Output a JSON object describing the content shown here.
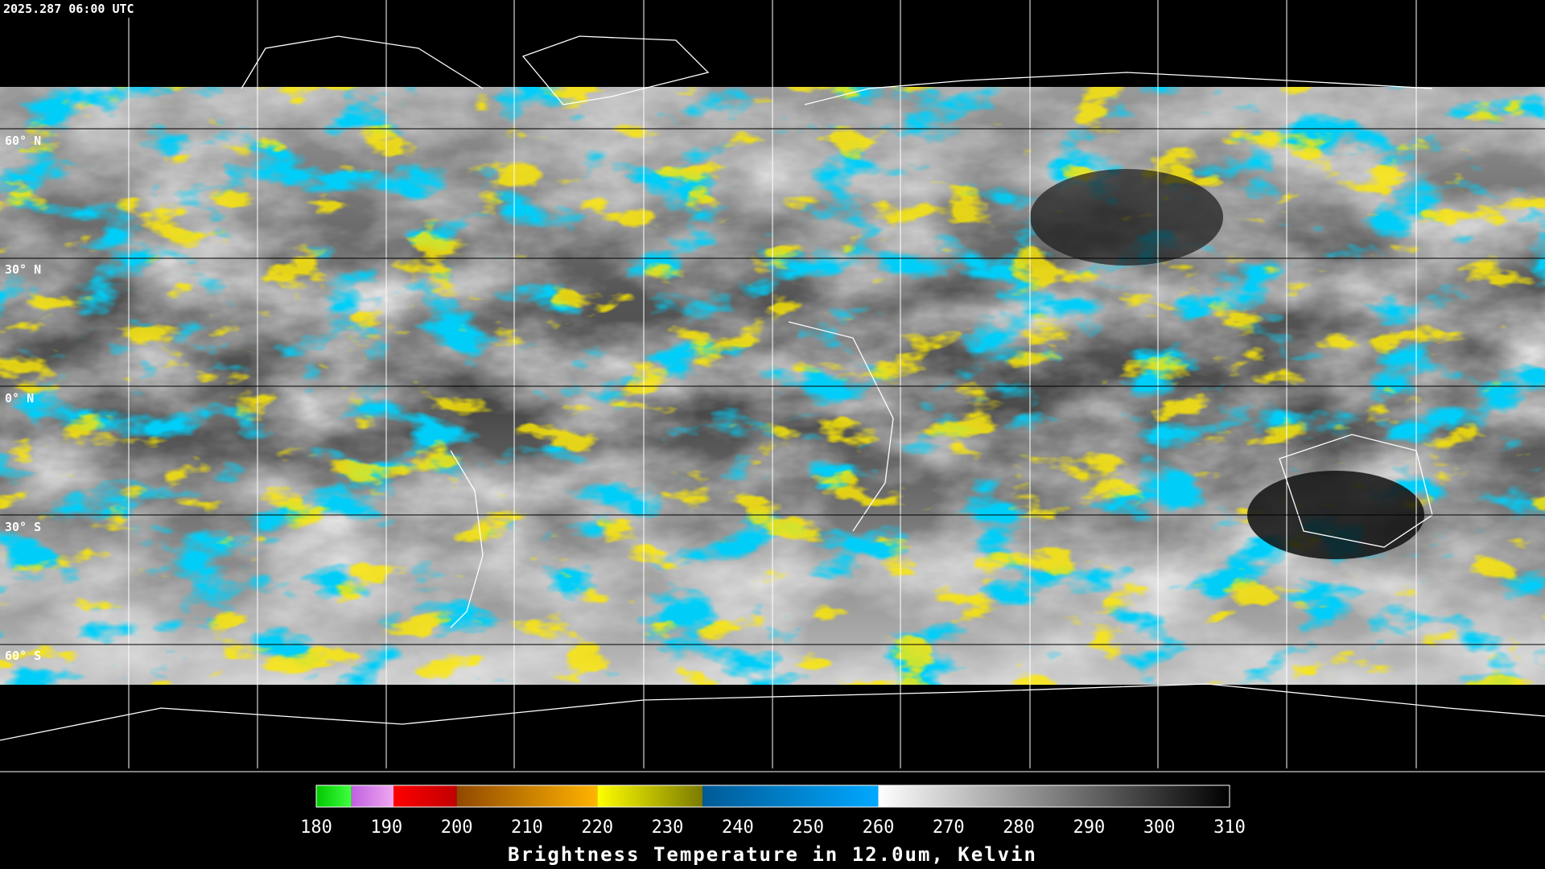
{
  "timestamp": "2025.287 06:00 UTC",
  "lat_labels": [
    {
      "label": "60° N"
    },
    {
      "label": "30° N"
    },
    {
      "label": "0° N"
    },
    {
      "label": "30° S"
    },
    {
      "label": "60° S"
    }
  ],
  "colorbar": {
    "title": "Brightness Temperature in 12.0um, Kelvin",
    "range": [
      180,
      310
    ],
    "ticks": [
      180,
      190,
      200,
      210,
      220,
      230,
      240,
      250,
      260,
      270,
      280,
      290,
      300,
      310
    ],
    "segments": [
      {
        "start": 180,
        "end": 185,
        "colors": [
          "#00c800",
          "#40ff40"
        ]
      },
      {
        "start": 185,
        "end": 191,
        "colors": [
          "#c060e0",
          "#f0a8f0"
        ]
      },
      {
        "start": 191,
        "end": 200,
        "colors": [
          "#ff0000",
          "#c00000"
        ]
      },
      {
        "start": 200,
        "end": 220,
        "colors": [
          "#904800",
          "#ffb400"
        ]
      },
      {
        "start": 220,
        "end": 235,
        "colors": [
          "#ffff00",
          "#7a7a00"
        ]
      },
      {
        "start": 235,
        "end": 260,
        "colors": [
          "#005a96",
          "#00a8ff"
        ]
      },
      {
        "start": 260,
        "end": 310,
        "colors": [
          "#ffffff",
          "#000000"
        ]
      }
    ]
  }
}
